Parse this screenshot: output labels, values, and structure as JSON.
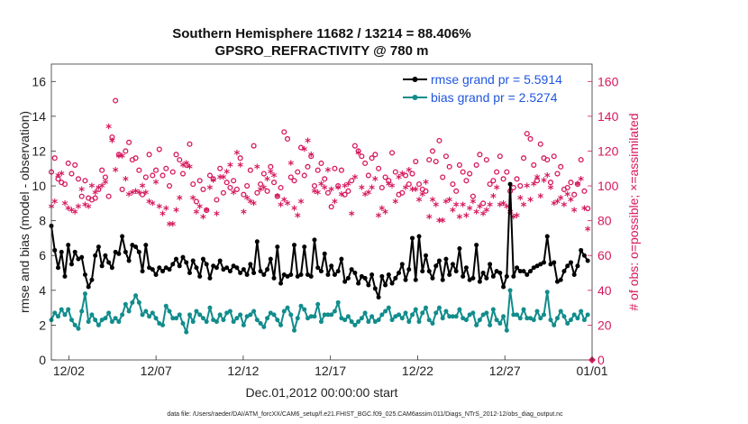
{
  "chart_data": {
    "type": "line",
    "title_line1": "Southern Hemisphere 11682 / 13214 = 88.406%",
    "title_line2": "GPSRO_REFRACTIVITY @ 780 m",
    "xlabel": "Dec.01,2012 00:00:00 start",
    "ylabel_left": "rmse and bias (model - observation)",
    "ylabel_right": "# of obs: o=possible; ×=assimilated",
    "footer": "data file: /Users/raeder/DAI/ATM_forcXX/CAM6_setup/f.e21.FHIST_BGC.f09_025.CAM6assim.011/Diags_NTrS_2012-12/obs_diag_output.nc",
    "xlim": [
      0,
      31
    ],
    "ylim_left": [
      0,
      17
    ],
    "ylim_right": [
      0,
      170
    ],
    "x_ticks": [
      1,
      6,
      11,
      16,
      21,
      26,
      31
    ],
    "x_tick_labels": [
      "12/02",
      "12/07",
      "12/12",
      "12/17",
      "12/22",
      "12/27",
      "01/01"
    ],
    "y_ticks_left": [
      "0",
      "2",
      "4",
      "6",
      "8",
      "10",
      "12",
      "14",
      "16"
    ],
    "y_ticks_right": [
      "0",
      "20",
      "40",
      "60",
      "80",
      "100",
      "120",
      "140",
      "160"
    ],
    "colors": {
      "rmse": "#000000",
      "bias": "#128c8c",
      "obs": "#d6185e",
      "legend_text": "#1f55e0"
    },
    "legend": [
      {
        "name": "rmse grand pr = 5.5914"
      },
      {
        "name": "bias grand pr = 2.5274"
      }
    ],
    "series": [
      {
        "name": "rmse",
        "axis": "left",
        "values": [
          7.7,
          6.3,
          5.3,
          6.2,
          4.8,
          6.6,
          5.5,
          6.2,
          5.8,
          5.9,
          4.9,
          4.2,
          4.6,
          6.0,
          6.5,
          5.4,
          6.0,
          5.6,
          5.3,
          6.2,
          6.1,
          7.1,
          6.2,
          5.7,
          6.6,
          6.5,
          6.2,
          5.1,
          6.6,
          5.3,
          5.2,
          4.9,
          5.3,
          5.1,
          5.3,
          5.2,
          5.5,
          5.8,
          5.4,
          5.9,
          5.6,
          5.0,
          5.7,
          5.3,
          4.8,
          5.8,
          5.5,
          4.7,
          5.4,
          5.3,
          5.7,
          5.2,
          5.3,
          5.1,
          5.4,
          5.3,
          5.0,
          5.2,
          4.9,
          5.5,
          5.0,
          6.8,
          5.1,
          4.9,
          5.2,
          5.8,
          4.7,
          6.5,
          4.4,
          4.9,
          4.8,
          4.9,
          6.6,
          4.8,
          4.9,
          6.5,
          4.9,
          4.8,
          6.9,
          5.3,
          5.1,
          6.1,
          4.9,
          5.4,
          4.9,
          5.1,
          5.8,
          4.5,
          4.7,
          5.2,
          5.0,
          4.4,
          4.8,
          4.7,
          4.3,
          4.9,
          4.1,
          3.6,
          4.8,
          4.3,
          4.9,
          4.4,
          4.7,
          5.0,
          5.5,
          4.6,
          5.2,
          7.0,
          4.6,
          7.1,
          5.1,
          6.0,
          5.1,
          4.7,
          5.4,
          5.7,
          4.6,
          5.8,
          4.9,
          5.5,
          5.1,
          6.4,
          4.8,
          5.3,
          4.6,
          4.7,
          6.6,
          4.5,
          5.0,
          4.7,
          5.5,
          4.8,
          5.1,
          5.0,
          4.2,
          4.8,
          10.1,
          4.8,
          5.3,
          5.1,
          5.1,
          4.9,
          5.1,
          5.3,
          5.4,
          5.5,
          5.6,
          7.1,
          5.5,
          5.6,
          4.5,
          4.6,
          5.1,
          5.4,
          5.6,
          4.9,
          5.4,
          6.3,
          6.0,
          5.7
        ]
      },
      {
        "name": "bias",
        "axis": "left",
        "values": [
          2.3,
          2.7,
          2.5,
          2.9,
          2.6,
          2.9,
          2.3,
          2.0,
          1.8,
          2.8,
          3.8,
          2.2,
          2.6,
          2.3,
          2.0,
          2.3,
          2.4,
          2.7,
          2.2,
          2.4,
          2.2,
          2.6,
          3.2,
          2.8,
          3.3,
          3.7,
          3.3,
          2.6,
          2.8,
          2.5,
          2.7,
          2.4,
          2.1,
          2.0,
          3.1,
          2.8,
          2.4,
          2.4,
          2.6,
          2.1,
          1.6,
          2.6,
          2.2,
          2.8,
          2.6,
          2.4,
          2.2,
          3.0,
          2.3,
          2.2,
          2.6,
          2.3,
          2.7,
          2.8,
          2.2,
          2.4,
          2.6,
          2.0,
          2.5,
          2.6,
          2.8,
          2.3,
          2.1,
          1.9,
          2.4,
          2.7,
          2.6,
          2.3,
          2.0,
          2.8,
          3.0,
          2.6,
          1.7,
          2.4,
          3.1,
          2.9,
          2.4,
          2.5,
          2.5,
          3.2,
          2.2,
          2.6,
          2.6,
          2.6,
          2.8,
          3.3,
          2.4,
          2.3,
          2.5,
          2.2,
          2.0,
          2.2,
          2.4,
          2.7,
          2.2,
          2.5,
          2.2,
          2.3,
          2.6,
          2.8,
          3.0,
          2.3,
          2.5,
          2.6,
          2.4,
          2.7,
          2.2,
          2.6,
          2.9,
          2.2,
          2.7,
          3.0,
          2.3,
          2.1,
          2.7,
          3.0,
          2.4,
          2.8,
          2.5,
          2.5,
          2.5,
          2.9,
          2.4,
          2.3,
          2.6,
          2.7,
          2.0,
          2.3,
          2.6,
          2.7,
          2.0,
          2.9,
          2.3,
          2.1,
          2.5,
          1.7,
          4.0,
          2.6,
          2.6,
          2.4,
          2.9,
          2.4,
          2.4,
          2.3,
          2.8,
          2.4,
          2.6,
          3.9,
          2.3,
          2.0,
          2.4,
          2.8,
          2.5,
          2.1,
          2.3,
          2.6,
          2.4,
          2.8,
          2.3,
          2.6
        ]
      },
      {
        "name": "obs possible",
        "axis": "right",
        "values": [
          108,
          116,
          104,
          102,
          101,
          113,
          107,
          112,
          104,
          94,
          103,
          93,
          92,
          93,
          98,
          109,
          105,
          94,
          128,
          149,
          118,
          98,
          120,
          125,
          115,
          116,
          109,
          95,
          105,
          118,
          106,
          109,
          121,
          106,
          110,
          100,
          108,
          118,
          115,
          107,
          112,
          124,
          101,
          91,
          103,
          98,
          86,
          106,
          104,
          92,
          110,
          96,
          102,
          99,
          103,
          98,
          116,
          95,
          100,
          109,
          123,
          96,
          101,
          107,
          97,
          111,
          102,
          94,
          99,
          131,
          127,
          105,
          103,
          108,
          122,
          106,
          111,
          117,
          100,
          109,
          113,
          104,
          96,
          88,
          110,
          100,
          109,
          95,
          97,
          103,
          123,
          120,
          117,
          113,
          106,
          116,
          118,
          110,
          99,
          105,
          103,
          119,
          108,
          95,
          96,
          106,
          101,
          107,
          114,
          101,
          98,
          97,
          115,
          120,
          114,
          126,
          105,
          117,
          111,
          101,
          97,
          112,
          108,
          103,
          107,
          94,
          112,
          118,
          90,
          115,
          101,
          103,
          108,
          117,
          104,
          108,
          97,
          99,
          104,
          100,
          116,
          130,
          127,
          112,
          103,
          124,
          116,
          115,
          102,
          117,
          107,
          111,
          98,
          99,
          102,
          95,
          101,
          115,
          97,
          87
        ]
      },
      {
        "name": "obs assimilated",
        "axis": "right",
        "values": [
          87,
          90,
          105,
          106,
          89,
          86,
          85,
          84,
          87,
          97,
          88,
          87,
          99,
          95,
          98,
          99,
          101,
          133,
          125,
          108,
          116,
          116,
          103,
          94,
          95,
          96,
          95,
          99,
          95,
          90,
          89,
          101,
          87,
          83,
          86,
          77,
          77,
          85,
          92,
          111,
          112,
          110,
          92,
          84,
          87,
          81,
          85,
          98,
          102,
          83,
          104,
          104,
          107,
          111,
          95,
          118,
          111,
          84,
          92,
          90,
          89,
          110,
          97,
          98,
          103,
          107,
          105,
          93,
          88,
          91,
          89,
          112,
          86,
          82,
          90,
          120,
          125,
          117,
          96,
          95,
          100,
          98,
          108,
          97,
          90,
          98,
          94,
          99,
          100,
          83,
          104,
          118,
          98,
          94,
          95,
          98,
          103,
          82,
          86,
          84,
          100,
          99,
          90,
          104,
          106,
          98,
          108,
          97,
          97,
          91,
          94,
          101,
          81,
          91,
          88,
          79,
          79,
          90,
          91,
          85,
          88,
          81,
          88,
          82,
          86,
          90,
          84,
          87,
          83,
          85,
          88,
          93,
          98,
          88,
          89,
          87,
          84,
          81,
          82,
          92,
          88,
          99,
          91,
          100,
          104,
          93,
          102,
          105,
          98,
          89,
          90,
          92,
          88,
          94,
          91,
          85,
          100,
          103,
          86,
          74
        ]
      }
    ]
  }
}
